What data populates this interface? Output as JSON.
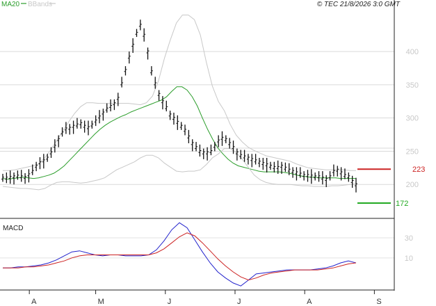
{
  "legend": {
    "ma": "MA20",
    "bb": "BBands",
    "ma_color": "#2a9d2a",
    "bb_color": "#c8c8c8"
  },
  "credit": "© TEC 21/8/2026 3:0 GMT",
  "panel": {
    "macd_title": "MACD"
  },
  "levels": {
    "resistance": {
      "label": "223",
      "value": 223,
      "color": "#cc2222"
    },
    "support": {
      "label": "172",
      "value": 172,
      "color": "#22aa22"
    }
  },
  "chart_data": [
    {
      "type": "line",
      "panel": "price",
      "title": "",
      "ylim": [
        150,
        465
      ],
      "y_ticks": [
        200,
        250,
        300,
        350,
        400
      ],
      "x_ticks": [
        "A",
        "M",
        "J",
        "J",
        "A",
        "S"
      ],
      "x_tick_index": [
        8,
        28,
        49,
        70,
        91,
        112
      ],
      "grid": true,
      "legend_position": "top-left",
      "series": [
        {
          "name": "MA20",
          "color": "#2a9d2a",
          "values": [
            209,
            208,
            209,
            210,
            211,
            210,
            209,
            210,
            212,
            214,
            217,
            222,
            228,
            236,
            244,
            252,
            260,
            268,
            276,
            283,
            289,
            294,
            298,
            302,
            305,
            309,
            312,
            315,
            318,
            321,
            324,
            327,
            332,
            340,
            347,
            347,
            342,
            332,
            318,
            300,
            283,
            268,
            255,
            246,
            238,
            232,
            228,
            226,
            224,
            222,
            220,
            219,
            219,
            219,
            219,
            218,
            217,
            215,
            213,
            212,
            211,
            211,
            210,
            210,
            210,
            210,
            209,
            209,
            209,
            209
          ]
        },
        {
          "name": "BBands",
          "color": "#c8c8c8",
          "values": [
            221,
            221,
            222,
            224,
            226,
            228,
            231,
            240,
            252,
            266,
            280,
            294,
            307,
            317,
            323,
            323,
            322,
            322,
            322,
            322,
            322,
            322,
            321,
            320,
            323,
            333,
            356,
            390,
            418,
            443,
            455,
            455,
            448,
            425,
            384,
            348,
            325,
            311,
            290,
            274,
            264,
            256,
            251,
            247,
            243,
            241,
            239,
            237,
            235,
            231,
            228,
            225,
            224,
            223,
            222,
            222,
            222,
            222,
            221,
            221
          ]
        },
        {
          "name": "BBands lower",
          "color": "#c8c8c8",
          "values": [
            197,
            196,
            195,
            194,
            194,
            193,
            192,
            194,
            199,
            203,
            204,
            204,
            203,
            202,
            203,
            205,
            207,
            210,
            216,
            222,
            226,
            230,
            234,
            240,
            244,
            244,
            240,
            232,
            226,
            220,
            219,
            220,
            220,
            222,
            230,
            240,
            246,
            254,
            254,
            248,
            238,
            226,
            214,
            207,
            203,
            201,
            200,
            200,
            200,
            199,
            198,
            198,
            197,
            197,
            197,
            198,
            198,
            199,
            200,
            201
          ]
        },
        {
          "name": "Price",
          "color": "#111111",
          "values": [
            210,
            210,
            211,
            212,
            213,
            212,
            211,
            215,
            220,
            228,
            233,
            236,
            240,
            248,
            258,
            268,
            278,
            284,
            285,
            288,
            290,
            292,
            288,
            286,
            290,
            296,
            302,
            308,
            314,
            318,
            322,
            330,
            352,
            372,
            392,
            410,
            428,
            440,
            425,
            400,
            370,
            352,
            336,
            325,
            316,
            305,
            300,
            294,
            288,
            282,
            272,
            262,
            256,
            250,
            248,
            248,
            250,
            258,
            266,
            270,
            268,
            262,
            256,
            248,
            244,
            242,
            240,
            238,
            236,
            234,
            232,
            230,
            228,
            226,
            226,
            228,
            225,
            222,
            220,
            218,
            216,
            214,
            214,
            213,
            212,
            212,
            210,
            208,
            212,
            220,
            222,
            218,
            214,
            212,
            205,
            200
          ]
        }
      ]
    },
    {
      "type": "line",
      "panel": "macd",
      "title": "MACD",
      "ylim": [
        -22,
        48
      ],
      "y_ticks": [
        10,
        30
      ],
      "grid": true,
      "series": [
        {
          "name": "MACD",
          "color": "#2222cc",
          "values": [
            0,
            0,
            1,
            1,
            2,
            3,
            5,
            8,
            12,
            16,
            17,
            15,
            13,
            12,
            13,
            13,
            12,
            12,
            12,
            13,
            18,
            27,
            38,
            45,
            40,
            28,
            16,
            5,
            -4,
            -10,
            -15,
            -18,
            -12,
            -6,
            -5,
            -4,
            -3,
            -2,
            -2,
            -2,
            -2,
            -1,
            0,
            2,
            5,
            7,
            5
          ]
        },
        {
          "name": "Signal",
          "color": "#cc2222",
          "values": [
            0,
            0,
            0,
            1,
            1,
            2,
            3,
            5,
            7,
            10,
            12,
            13,
            13,
            13,
            13,
            13,
            13,
            13,
            13,
            13,
            15,
            19,
            25,
            31,
            35,
            32,
            25,
            17,
            9,
            2,
            -4,
            -9,
            -12,
            -10,
            -7,
            -5,
            -4,
            -3,
            -2,
            -2,
            -2,
            -2,
            -1,
            0,
            2,
            4,
            5
          ]
        }
      ]
    }
  ]
}
